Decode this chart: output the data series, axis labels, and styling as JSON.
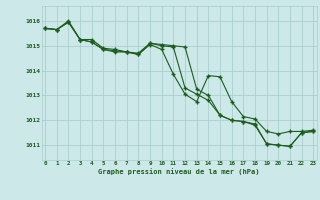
{
  "title": "Graphe pression niveau de la mer (hPa)",
  "bg_color": "#cce8e8",
  "grid_color": "#aacece",
  "line_color": "#1e5c1e",
  "x_labels": [
    "0",
    "1",
    "2",
    "3",
    "4",
    "5",
    "6",
    "7",
    "8",
    "9",
    "10",
    "11",
    "12",
    "13",
    "14",
    "15",
    "16",
    "17",
    "18",
    "19",
    "20",
    "21",
    "22",
    "23"
  ],
  "ylim": [
    1010.4,
    1016.6
  ],
  "yticks": [
    1011,
    1012,
    1013,
    1014,
    1015,
    1016
  ],
  "series1": [
    1015.7,
    1015.65,
    1015.95,
    1015.25,
    1015.15,
    1014.85,
    1014.75,
    1014.75,
    1014.65,
    1015.05,
    1014.85,
    1013.85,
    1013.05,
    1012.75,
    1013.8,
    1013.75,
    1012.75,
    1012.15,
    1012.05,
    1011.55,
    1011.45,
    1011.55,
    1011.55,
    1011.6
  ],
  "series2": [
    1015.7,
    1015.65,
    1015.95,
    1015.25,
    1015.15,
    1014.85,
    1014.8,
    1014.75,
    1014.65,
    1015.1,
    1015.0,
    1014.95,
    1013.3,
    1013.05,
    1012.8,
    1012.2,
    1012.0,
    1011.95,
    1011.85,
    1011.05,
    1011.0,
    1010.95,
    1011.5,
    1011.55
  ],
  "series3": [
    1015.7,
    1015.65,
    1016.0,
    1015.25,
    1015.25,
    1014.9,
    1014.85,
    1014.75,
    1014.7,
    1015.1,
    1015.05,
    1015.0,
    1014.95,
    1013.25,
    1013.0,
    1012.2,
    1012.0,
    1011.95,
    1011.8,
    1011.05,
    1011.0,
    1010.95,
    1011.5,
    1011.55
  ]
}
